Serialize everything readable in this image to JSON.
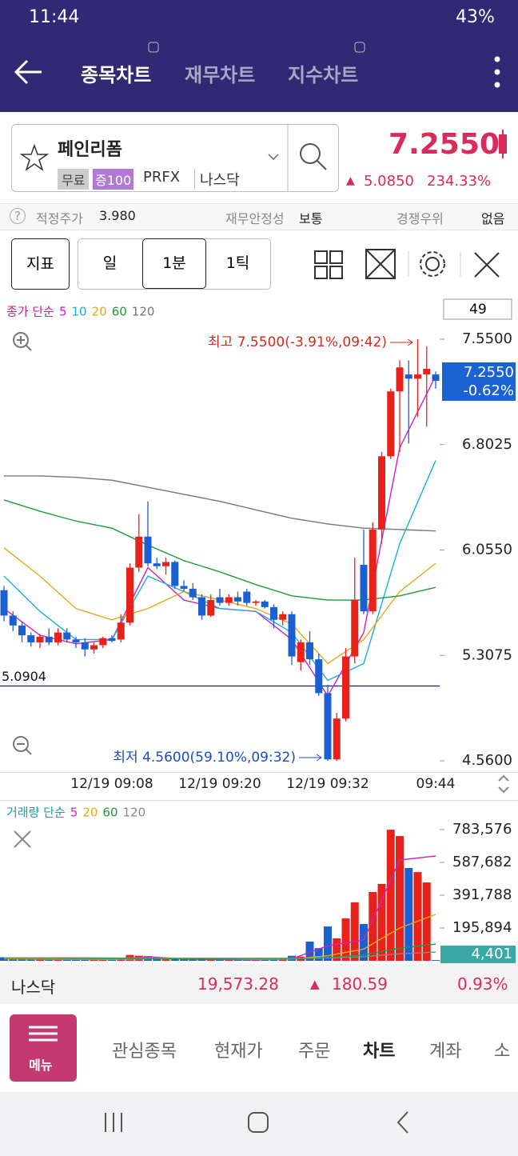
{
  "status_bar": {
    "time": "11:44",
    "battery": "43%"
  },
  "header": {
    "tabs": [
      "종목차트",
      "재무차트",
      "지수차트"
    ]
  },
  "stock": {
    "name": "페인리폼",
    "tags": [
      "무료",
      "증100",
      "PRFX",
      "나스닥"
    ],
    "price": "7.2550",
    "change": "5.0850",
    "change_pct": "234.33%"
  },
  "info_row": [
    {
      "label": "적정주가",
      "value": "3.980"
    },
    {
      "label": "재무안정성",
      "value": "보통"
    },
    {
      "label": "경쟁우위",
      "value": "없음"
    }
  ],
  "toolbar": {
    "buttons": [
      "지표",
      "일",
      "1분",
      "1틱"
    ]
  },
  "chart_data": [
    {
      "type": "candlestick",
      "legend_title": "종가 단순",
      "candle_count": 49,
      "categories": [
        null,
        null,
        null,
        null,
        null,
        null,
        null,
        null,
        null,
        null,
        null,
        null,
        "12/19 09:08",
        null,
        null,
        null,
        null,
        null,
        null,
        null,
        null,
        null,
        null,
        null,
        "12/19 09:20",
        null,
        null,
        null,
        null,
        null,
        null,
        null,
        null,
        null,
        null,
        null,
        "12/19 09:32",
        null,
        null,
        null,
        null,
        null,
        null,
        null,
        null,
        null,
        null,
        null,
        "09:44"
      ],
      "open": [
        5.77,
        5.59,
        5.52,
        5.45,
        5.4,
        5.44,
        5.4,
        5.47,
        5.42,
        5.4,
        5.35,
        5.38,
        5.43,
        5.42,
        5.54,
        5.93,
        6.15,
        5.96,
        5.94,
        5.97,
        5.8,
        5.78,
        5.72,
        5.59,
        5.72,
        5.68,
        5.72,
        5.76,
        5.68,
        5.69,
        5.65,
        5.56,
        5.6,
        5.26,
        5.4,
        5.28,
        5.04,
        4.57,
        4.86,
        5.3,
        5.95,
        5.62,
        6.2,
        6.72,
        7.18,
        7.3,
        7.27,
        7.3,
        7.3
      ],
      "high": [
        5.8,
        5.62,
        5.55,
        5.47,
        5.46,
        5.5,
        5.5,
        5.5,
        5.44,
        5.43,
        5.4,
        5.44,
        5.45,
        5.6,
        5.96,
        6.31,
        6.4,
        6.0,
        6.0,
        5.98,
        5.84,
        5.82,
        5.74,
        5.74,
        5.78,
        5.74,
        5.76,
        5.78,
        5.7,
        5.7,
        5.67,
        5.62,
        5.62,
        5.42,
        5.48,
        5.32,
        5.1,
        4.9,
        5.36,
        6.0,
        6.2,
        6.25,
        6.75,
        7.2,
        7.4,
        7.4,
        7.55,
        7.5,
        7.32
      ],
      "low": [
        5.55,
        5.48,
        5.4,
        5.37,
        5.36,
        5.38,
        5.38,
        5.4,
        5.36,
        5.3,
        5.32,
        5.36,
        5.4,
        5.4,
        5.52,
        5.9,
        5.94,
        5.92,
        5.88,
        5.78,
        5.76,
        5.7,
        5.56,
        5.58,
        5.66,
        5.66,
        5.66,
        5.66,
        5.66,
        5.64,
        5.5,
        5.52,
        5.24,
        5.2,
        5.24,
        5.02,
        4.56,
        4.56,
        4.84,
        5.25,
        5.6,
        5.6,
        6.1,
        6.7,
        6.75,
        6.81,
        7.0,
        6.93,
        7.2
      ],
      "close": [
        5.59,
        5.52,
        5.45,
        5.4,
        5.44,
        5.4,
        5.47,
        5.42,
        5.4,
        5.35,
        5.38,
        5.43,
        5.41,
        5.54,
        5.93,
        6.15,
        5.96,
        5.94,
        5.97,
        5.8,
        5.78,
        5.72,
        5.59,
        5.7,
        5.68,
        5.72,
        5.69,
        5.68,
        5.69,
        5.65,
        5.56,
        5.6,
        5.3,
        5.4,
        5.28,
        5.04,
        4.57,
        4.86,
        5.3,
        5.7,
        5.62,
        6.2,
        6.72,
        7.18,
        7.35,
        7.27,
        7.3,
        7.34,
        7.255
      ],
      "up_color": "#e8221b",
      "down_color": "#1b5fd1",
      "ylim": [
        4.56,
        7.55
      ],
      "yticks": [
        {
          "value": 7.55,
          "label": "7.5500"
        },
        {
          "value": 6.8025,
          "label": "6.8025"
        },
        {
          "value": 6.055,
          "label": "6.0550"
        },
        {
          "value": 5.3075,
          "label": "5.3075"
        },
        {
          "value": 4.56,
          "label": "4.5600"
        }
      ],
      "reference_line": {
        "value": 5.0904,
        "label": "5.0904",
        "color": "#1c1c80"
      },
      "last_price": {
        "value": 7.255,
        "label": "7.2550",
        "change": "-0.62%"
      },
      "annotations": {
        "high": "최고 7.5500(-3.91%,09:42)",
        "low": "최저 4.5600(59.10%,09:32)"
      },
      "moving_averages": {
        "x": [
          0,
          4,
          8,
          12,
          16,
          20,
          24,
          28,
          32,
          36,
          40,
          44,
          48
        ],
        "series": [
          {
            "name": "5",
            "color": "#d01ec8",
            "values": [
              5.64,
              5.45,
              5.39,
              5.42,
              5.93,
              5.7,
              5.64,
              5.62,
              5.42,
              5.02,
              5.47,
              6.78,
              7.29
            ]
          },
          {
            "name": "10",
            "color": "#1aaee0",
            "values": [
              5.87,
              5.62,
              5.42,
              5.42,
              5.87,
              5.76,
              5.64,
              5.62,
              5.47,
              5.13,
              5.25,
              6.1,
              6.69
            ]
          },
          {
            "name": "20",
            "color": "#e8a818",
            "values": [
              6.07,
              5.87,
              5.64,
              5.56,
              5.64,
              5.76,
              5.7,
              5.64,
              5.53,
              5.25,
              5.42,
              5.76,
              5.96
            ]
          },
          {
            "name": "60",
            "color": "#1e9a3c",
            "values": [
              6.41,
              6.33,
              6.26,
              6.21,
              6.09,
              5.98,
              5.9,
              5.81,
              5.73,
              5.7,
              5.7,
              5.73,
              5.79
            ]
          },
          {
            "name": "120",
            "color": "#777777",
            "values": [
              6.58,
              6.58,
              6.57,
              6.55,
              6.5,
              6.45,
              6.4,
              6.34,
              6.28,
              6.24,
              6.21,
              6.2,
              6.19
            ]
          }
        ]
      }
    },
    {
      "type": "bar",
      "legend_title": "거래량 단순",
      "values": [
        21000,
        15000,
        9000,
        12000,
        8000,
        6000,
        10000,
        7000,
        5000,
        9000,
        6000,
        8000,
        7000,
        18000,
        35000,
        30000,
        28000,
        12000,
        9000,
        14000,
        8000,
        7000,
        11000,
        9000,
        6000,
        5000,
        7000,
        8000,
        5000,
        6000,
        12000,
        9000,
        30000,
        25000,
        114700,
        76000,
        205000,
        134000,
        253000,
        349000,
        220000,
        411000,
        459000,
        783000,
        745000,
        554000,
        530000,
        468000,
        4401
      ],
      "ylim": [
        0,
        783576
      ],
      "yticks": [
        {
          "value": 783576,
          "label": "783,576"
        },
        {
          "value": 587682,
          "label": "587,682"
        },
        {
          "value": 391788,
          "label": "391,788"
        },
        {
          "value": 195894,
          "label": "195,894"
        }
      ],
      "last_value": {
        "value": 4401,
        "label": "4,401"
      },
      "moving_averages": {
        "x": [
          0,
          4,
          8,
          12,
          16,
          20,
          24,
          28,
          32,
          36,
          40,
          44,
          48
        ],
        "series": [
          {
            "name": "5",
            "color": "#d01ec8",
            "values": [
              14000,
              9000,
              8000,
              8000,
              25000,
              10000,
              8000,
              6000,
              12000,
              90000,
              124000,
              602000,
              626000
            ]
          },
          {
            "name": "20",
            "color": "#e8a818",
            "values": [
              12000,
              11000,
              10000,
              9000,
              12000,
              14000,
              12000,
              9000,
              10000,
              30000,
              70000,
              196000,
              277000
            ]
          },
          {
            "name": "60",
            "color": "#1e9a3c",
            "values": [
              15000,
              15000,
              14000,
              13000,
              13000,
              13000,
              12000,
              12000,
              12000,
              18000,
              35000,
              75000,
              100000
            ]
          },
          {
            "name": "120",
            "color": "#888888",
            "values": [
              18000,
              18000,
              18000,
              17000,
              17000,
              16000,
              16000,
              15000,
              15000,
              17000,
              25000,
              42000,
              52000
            ]
          }
        ]
      }
    }
  ],
  "market_bar": {
    "name": "나스닥",
    "value": "19,573.28",
    "change": "180.59",
    "change_pct": "0.93%"
  },
  "bottom_nav": {
    "menu": "메뉴",
    "tabs": [
      "관심종목",
      "현재가",
      "주문",
      "차트",
      "계좌",
      "소"
    ]
  }
}
